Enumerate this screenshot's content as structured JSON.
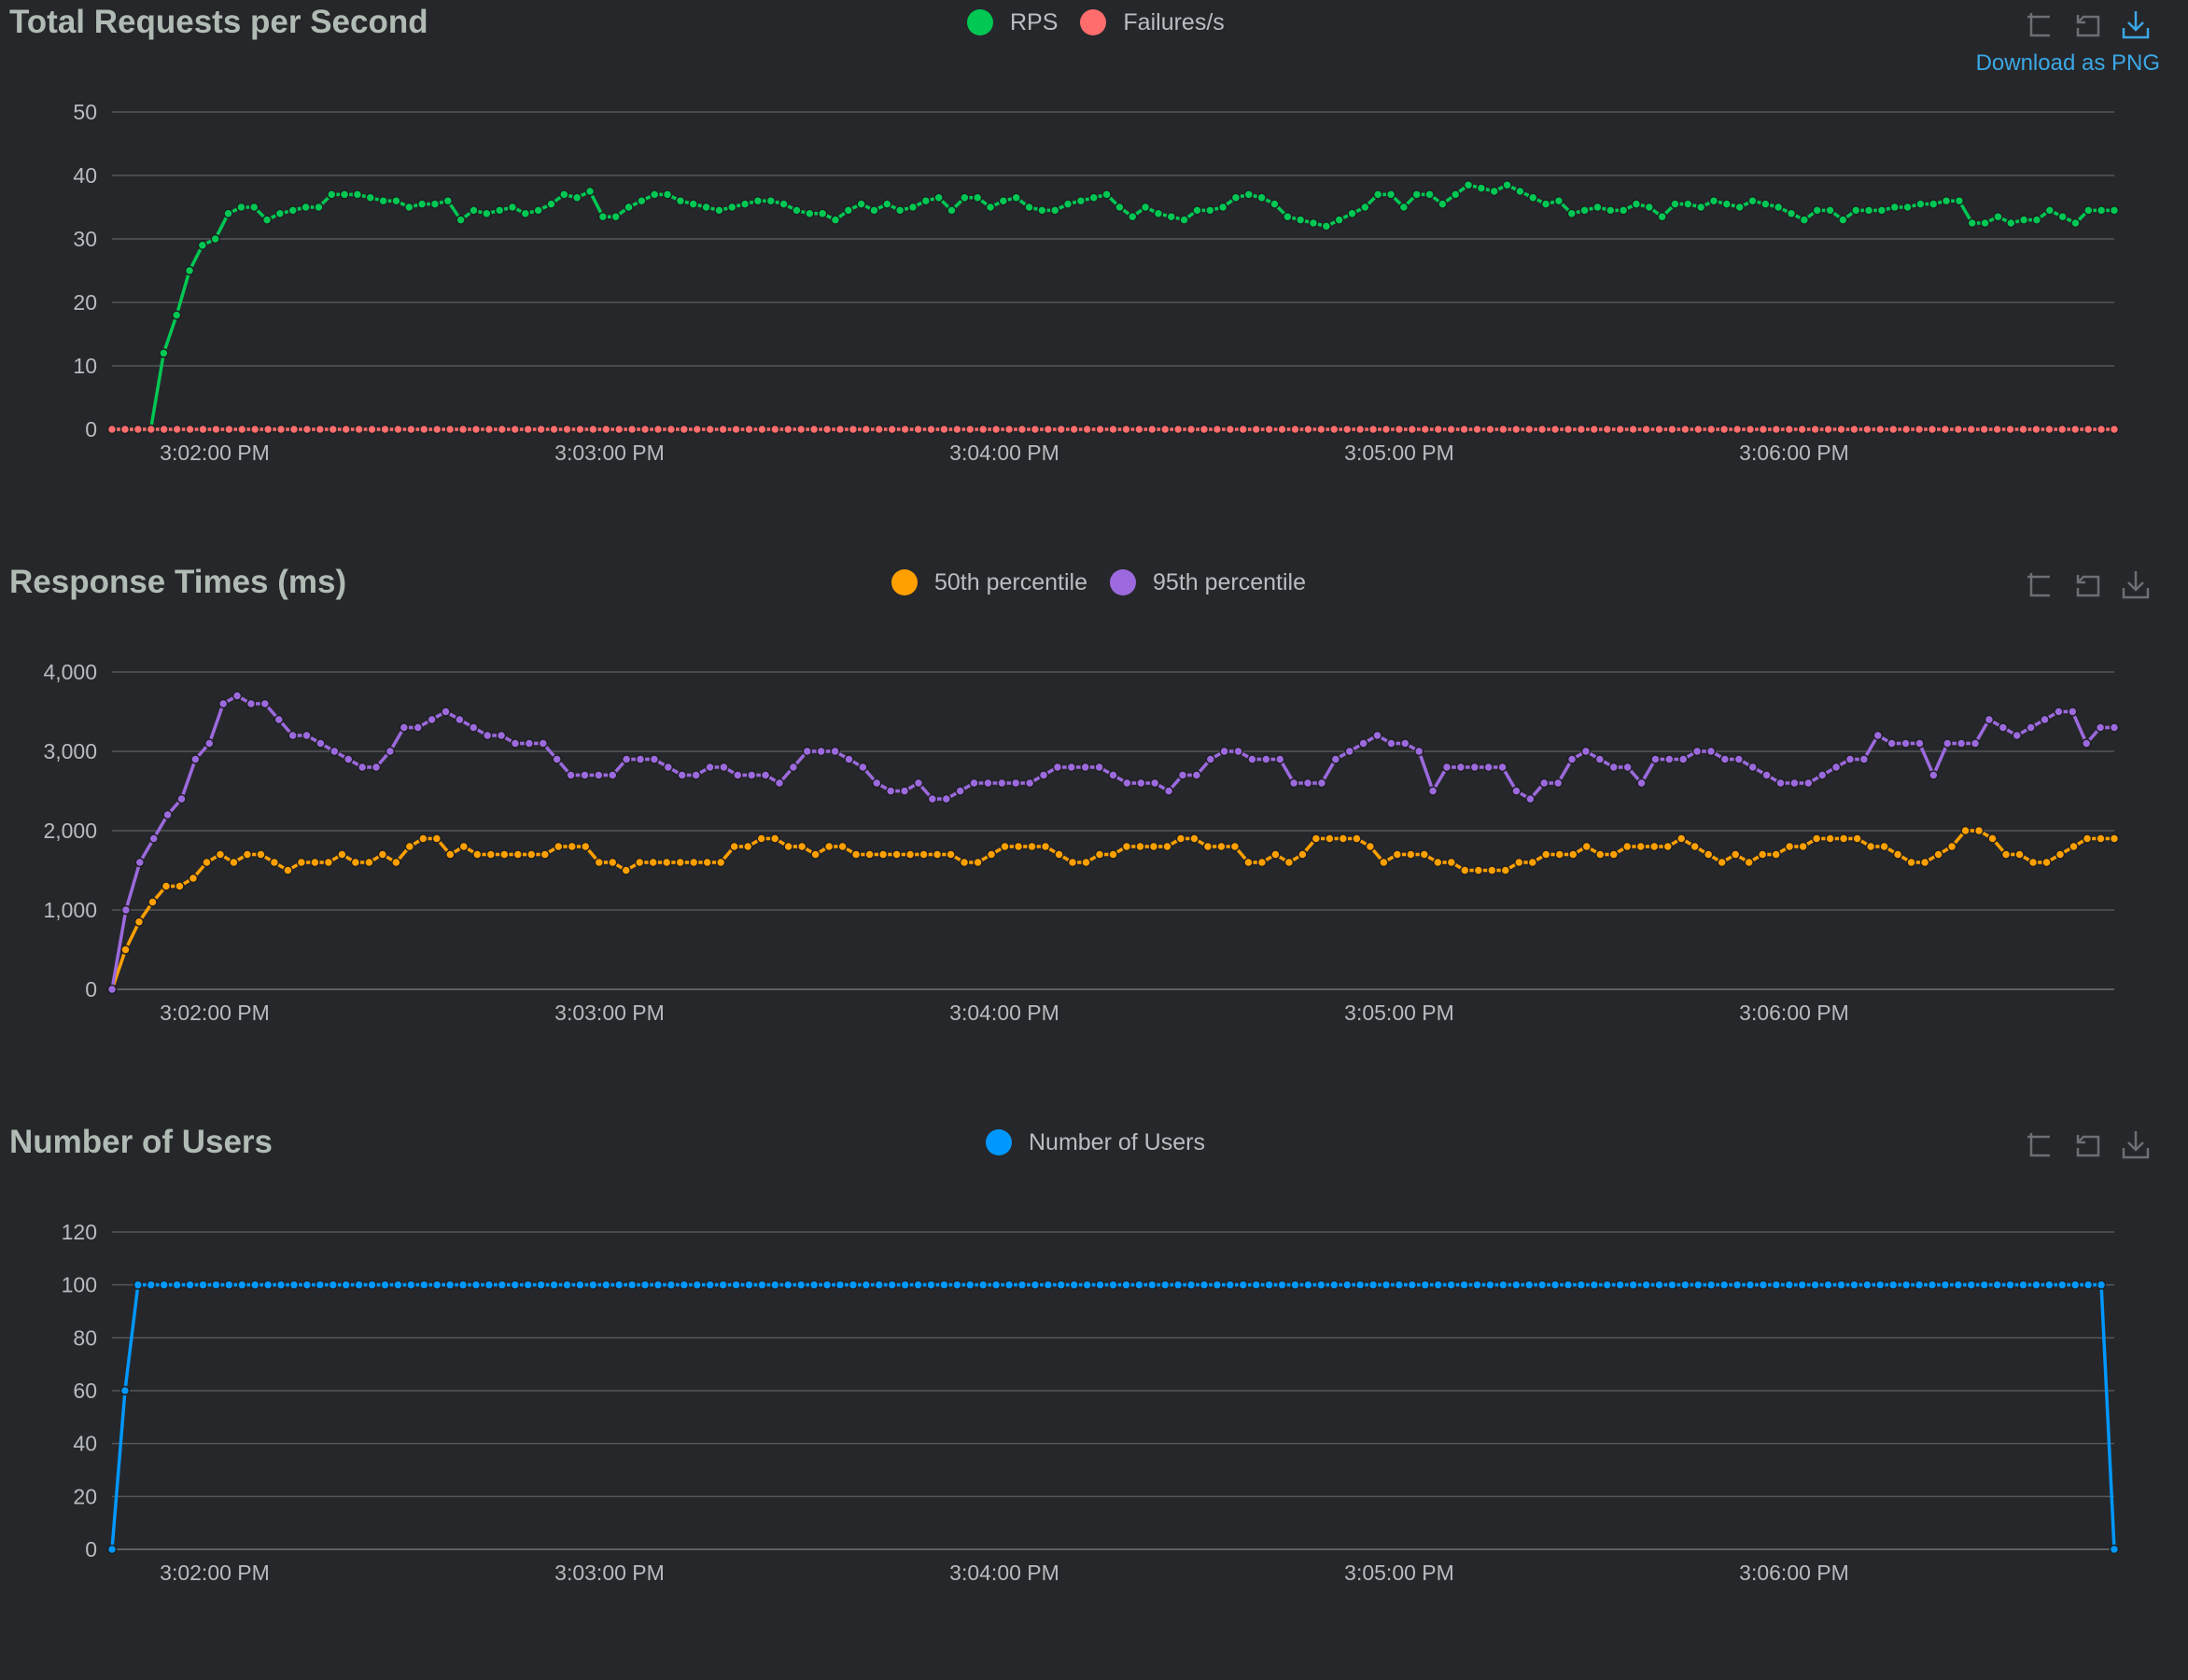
{
  "time_labels": [
    "3:02:00 PM",
    "3:03:00 PM",
    "3:04:00 PM",
    "3:05:00 PM",
    "3:06:00 PM"
  ],
  "toolbox": {
    "download_tip": "Download as PNG",
    "icons": [
      "zoom-icon",
      "restore-icon",
      "download-icon"
    ]
  },
  "colors": {
    "rps": "#00c853",
    "failures": "#ff6d6d",
    "p50": "#ffa000",
    "p95": "#9c6ade",
    "users": "#0098ff",
    "grid": "#555759",
    "axis_text": "#b6bcbf"
  },
  "chart_data": [
    {
      "type": "line",
      "title": "Total Requests per Second",
      "xlabel": "",
      "ylabel": "",
      "ylim": [
        0,
        50
      ],
      "yticks": [
        "0",
        "10",
        "20",
        "30",
        "40",
        "50"
      ],
      "grid": true,
      "legend": "top-center",
      "x_start": "3:01:44 PM",
      "x_end": "3:06:48 PM",
      "series": [
        {
          "name": "RPS",
          "color": "#00c853",
          "values": [
            0,
            0,
            0,
            0,
            12,
            18,
            25,
            29,
            30,
            34,
            35,
            35,
            33,
            34,
            34.5,
            35,
            35,
            37,
            37,
            37,
            36.5,
            36,
            36,
            35,
            35.5,
            35.5,
            36,
            33,
            34.5,
            34,
            34.5,
            35,
            34,
            34.5,
            35.5,
            37,
            36.5,
            37.5,
            33.5,
            33.5,
            35,
            36,
            37,
            37,
            36,
            35.5,
            35,
            34.5,
            35,
            35.5,
            36,
            36,
            35.5,
            34.5,
            34,
            34,
            33,
            34.5,
            35.5,
            34.5,
            35.5,
            34.5,
            35,
            36,
            36.5,
            34.5,
            36.5,
            36.5,
            35,
            36,
            36.5,
            35,
            34.5,
            34.5,
            35.5,
            36,
            36.5,
            37,
            35,
            33.5,
            35,
            34,
            33.5,
            33,
            34.5,
            34.5,
            35,
            36.5,
            37,
            36.5,
            35.5,
            33.5,
            33,
            32.5,
            32,
            33,
            34,
            35,
            37,
            37,
            35,
            37,
            37,
            35.5,
            37,
            38.5,
            38,
            37.5,
            38.5,
            37.5,
            36.5,
            35.5,
            36,
            34,
            34.5,
            35,
            34.5,
            34.5,
            35.5,
            35,
            33.5,
            35.5,
            35.5,
            35,
            36,
            35.5,
            35,
            36,
            35.5,
            35,
            34,
            33,
            34.5,
            34.5,
            33,
            34.5,
            34.5,
            34.5,
            35,
            35,
            35.5,
            35.5,
            36,
            36,
            32.5,
            32.5,
            33.5,
            32.5,
            33,
            33,
            34.5,
            33.5,
            32.5,
            34.5,
            34.5,
            34.5
          ]
        },
        {
          "name": "Failures/s",
          "color": "#ff6d6d",
          "constant": 0
        }
      ]
    },
    {
      "type": "line",
      "title": "Response Times (ms)",
      "xlabel": "",
      "ylabel": "",
      "ylim": [
        0,
        4000
      ],
      "yticks": [
        "0",
        "1,000",
        "2,000",
        "3,000",
        "4,000"
      ],
      "grid": true,
      "legend": "top-center",
      "x_start": "3:01:44 PM",
      "x_end": "3:06:48 PM",
      "series": [
        {
          "name": "50th percentile",
          "color": "#ffa000",
          "values": [
            0,
            500,
            850,
            1100,
            1300,
            1300,
            1400,
            1600,
            1700,
            1600,
            1700,
            1700,
            1600,
            1500,
            1600,
            1600,
            1600,
            1700,
            1600,
            1600,
            1700,
            1600,
            1800,
            1900,
            1900,
            1700,
            1800,
            1700,
            1700,
            1700,
            1700,
            1700,
            1700,
            1800,
            1800,
            1800,
            1600,
            1600,
            1500,
            1600,
            1600,
            1600,
            1600,
            1600,
            1600,
            1600,
            1800,
            1800,
            1900,
            1900,
            1800,
            1800,
            1700,
            1800,
            1800,
            1700,
            1700,
            1700,
            1700,
            1700,
            1700,
            1700,
            1700,
            1600,
            1600,
            1700,
            1800,
            1800,
            1800,
            1800,
            1700,
            1600,
            1600,
            1700,
            1700,
            1800,
            1800,
            1800,
            1800,
            1900,
            1900,
            1800,
            1800,
            1800,
            1600,
            1600,
            1700,
            1600,
            1700,
            1900,
            1900,
            1900,
            1900,
            1800,
            1600,
            1700,
            1700,
            1700,
            1600,
            1600,
            1500,
            1500,
            1500,
            1500,
            1600,
            1600,
            1700,
            1700,
            1700,
            1800,
            1700,
            1700,
            1800,
            1800,
            1800,
            1800,
            1900,
            1800,
            1700,
            1600,
            1700,
            1600,
            1700,
            1700,
            1800,
            1800,
            1900,
            1900,
            1900,
            1900,
            1800,
            1800,
            1700,
            1600,
            1600,
            1700,
            1800,
            2000,
            2000,
            1900,
            1700,
            1700,
            1600,
            1600,
            1700,
            1800,
            1900,
            1900,
            1900
          ]
        },
        {
          "name": "95th percentile",
          "color": "#9c6ade",
          "values": [
            0,
            1000,
            1600,
            1900,
            2200,
            2400,
            2900,
            3100,
            3600,
            3700,
            3600,
            3600,
            3400,
            3200,
            3200,
            3100,
            3000,
            2900,
            2800,
            2800,
            3000,
            3300,
            3300,
            3400,
            3500,
            3400,
            3300,
            3200,
            3200,
            3100,
            3100,
            3100,
            2900,
            2700,
            2700,
            2700,
            2700,
            2900,
            2900,
            2900,
            2800,
            2700,
            2700,
            2800,
            2800,
            2700,
            2700,
            2700,
            2600,
            2800,
            3000,
            3000,
            3000,
            2900,
            2800,
            2600,
            2500,
            2500,
            2600,
            2400,
            2400,
            2500,
            2600,
            2600,
            2600,
            2600,
            2600,
            2700,
            2800,
            2800,
            2800,
            2800,
            2700,
            2600,
            2600,
            2600,
            2500,
            2700,
            2700,
            2900,
            3000,
            3000,
            2900,
            2900,
            2900,
            2600,
            2600,
            2600,
            2900,
            3000,
            3100,
            3200,
            3100,
            3100,
            3000,
            2500,
            2800,
            2800,
            2800,
            2800,
            2800,
            2500,
            2400,
            2600,
            2600,
            2900,
            3000,
            2900,
            2800,
            2800,
            2600,
            2900,
            2900,
            2900,
            3000,
            3000,
            2900,
            2900,
            2800,
            2700,
            2600,
            2600,
            2600,
            2700,
            2800,
            2900,
            2900,
            3200,
            3100,
            3100,
            3100,
            2700,
            3100,
            3100,
            3100,
            3400,
            3300,
            3200,
            3300,
            3400,
            3500,
            3500,
            3100,
            3300,
            3300
          ]
        }
      ]
    },
    {
      "type": "line",
      "title": "Number of Users",
      "xlabel": "",
      "ylabel": "",
      "ylim": [
        0,
        120
      ],
      "yticks": [
        "0",
        "20",
        "40",
        "60",
        "80",
        "100",
        "120"
      ],
      "grid": true,
      "legend": "top-center",
      "x_start": "3:01:44 PM",
      "x_end": "3:06:48 PM",
      "series": [
        {
          "name": "Number of Users",
          "color": "#0098ff",
          "values": [
            0,
            60,
            100,
            100,
            100,
            100,
            100,
            100,
            100,
            100,
            100,
            100,
            100,
            100,
            100,
            100,
            100,
            100,
            100,
            100,
            100,
            100,
            100,
            100,
            100,
            100,
            100,
            100,
            100,
            100,
            100,
            100,
            100,
            100,
            100,
            100,
            100,
            100,
            100,
            100,
            100,
            100,
            100,
            100,
            100,
            100,
            100,
            100,
            100,
            100,
            100,
            100,
            100,
            100,
            100,
            100,
            100,
            100,
            100,
            100,
            100,
            100,
            100,
            100,
            100,
            100,
            100,
            100,
            100,
            100,
            100,
            100,
            100,
            100,
            100,
            100,
            100,
            100,
            100,
            100,
            100,
            100,
            100,
            100,
            100,
            100,
            100,
            100,
            100,
            100,
            100,
            100,
            100,
            100,
            100,
            100,
            100,
            100,
            100,
            100,
            100,
            100,
            100,
            100,
            100,
            100,
            100,
            100,
            100,
            100,
            100,
            100,
            100,
            100,
            100,
            100,
            100,
            100,
            100,
            100,
            100,
            100,
            100,
            100,
            100,
            100,
            100,
            100,
            100,
            100,
            100,
            100,
            100,
            100,
            100,
            100,
            100,
            100,
            100,
            100,
            100,
            100,
            100,
            100,
            100,
            100,
            100,
            100,
            100,
            100,
            100,
            100,
            100,
            100,
            0
          ]
        }
      ]
    }
  ]
}
